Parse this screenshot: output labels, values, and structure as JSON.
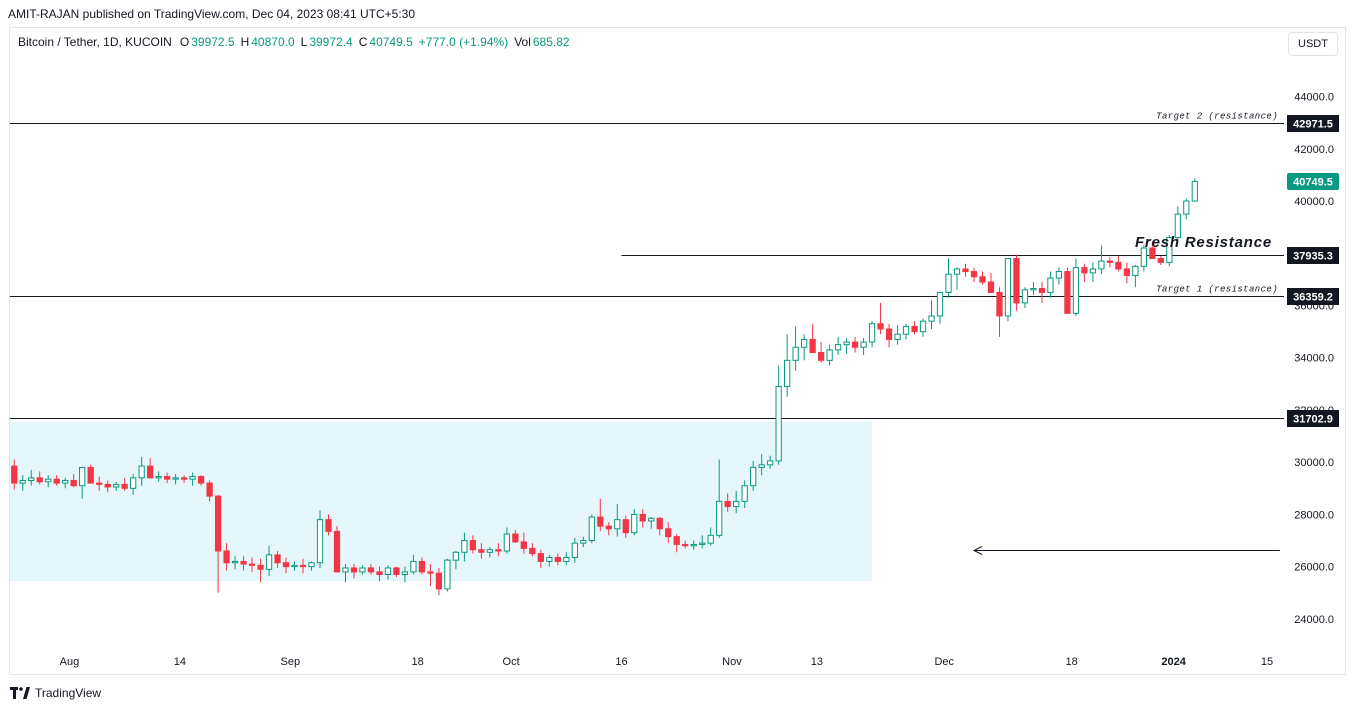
{
  "credit": "AMIT-RAJAN published on TradingView.com, Dec 04, 2023 08:41 UTC+5:30",
  "legend": {
    "symbol": "Bitcoin / Tether, 1D, KUCOIN",
    "o_label": "O",
    "o": "39972.5",
    "h_label": "H",
    "h": "40870.0",
    "l_label": "L",
    "l": "39972.4",
    "c_label": "C",
    "c": "40749.5",
    "change": "+777.0 (+1.94%)",
    "vol_label": "Vol",
    "vol": "685.82"
  },
  "unit_button": "USDT",
  "footer_brand": "TradingView",
  "annotations": {
    "fresh_resistance": "Fresh Resistance"
  },
  "colors": {
    "up": "#089981",
    "down": "#f23645",
    "zone": "#e6f7fb",
    "last_price_bg": "#089981",
    "level_label_bg": "#131722"
  },
  "chart_data": {
    "type": "candlestick",
    "y_range": [
      23000,
      45400
    ],
    "x_range": [
      0,
      150
    ],
    "y_ticks": [
      "44000.0",
      "42000.0",
      "40000.0",
      "38000.0",
      "36000.0",
      "34000.0",
      "32000.0",
      "30000.0",
      "28000.0",
      "26000.0",
      "24000.0"
    ],
    "x_ticks": [
      {
        "label": "Aug",
        "day": 7
      },
      {
        "label": "14",
        "day": 20
      },
      {
        "label": "Sep",
        "day": 33
      },
      {
        "label": "18",
        "day": 48
      },
      {
        "label": "Oct",
        "day": 59
      },
      {
        "label": "16",
        "day": 72
      },
      {
        "label": "Nov",
        "day": 85
      },
      {
        "label": "13",
        "day": 95
      },
      {
        "label": "Dec",
        "day": 110
      },
      {
        "label": "18",
        "day": 125
      },
      {
        "label": "2024",
        "day": 137
      },
      {
        "label": "15",
        "day": 148
      }
    ],
    "levels": [
      {
        "value": 42971.5,
        "label": "42971.5",
        "note": "Target 2 (resistance)",
        "from_day": 0
      },
      {
        "value": 37935.3,
        "label": "37935.3",
        "note": "",
        "from_day": 72
      },
      {
        "value": 36359.2,
        "label": "36359.2",
        "note": "Target 1 (resistance)",
        "from_day": 0
      },
      {
        "value": 31702.9,
        "label": "31702.9",
        "note": "",
        "from_day": 0
      }
    ],
    "last_price": {
      "value": 40749.5,
      "label": "40749.5"
    },
    "zone": {
      "from_day": 0,
      "to_day": 101.5,
      "low": 25450,
      "high": 31550
    },
    "arrow": {
      "from_day": 149.5,
      "to_day": 113.5,
      "value": 26650
    },
    "candles": [
      [
        29850,
        30100,
        28950,
        29200
      ],
      [
        29200,
        29500,
        28900,
        29300
      ],
      [
        29300,
        29700,
        29100,
        29400
      ],
      [
        29400,
        29650,
        29150,
        29250
      ],
      [
        29250,
        29500,
        29050,
        29350
      ],
      [
        29350,
        29500,
        29100,
        29200
      ],
      [
        29200,
        29400,
        29000,
        29300
      ],
      [
        29300,
        29550,
        29050,
        29100
      ],
      [
        29100,
        29600,
        28600,
        29800
      ],
      [
        29800,
        29900,
        29200,
        29200
      ],
      [
        29200,
        29450,
        28900,
        29150
      ],
      [
        29150,
        29300,
        28850,
        29050
      ],
      [
        29050,
        29250,
        28900,
        29150
      ],
      [
        29150,
        29400,
        28900,
        29000
      ],
      [
        29000,
        29550,
        28750,
        29400
      ],
      [
        29400,
        30200,
        29100,
        29850
      ],
      [
        29850,
        30150,
        29500,
        29400
      ],
      [
        29400,
        29650,
        29250,
        29450
      ],
      [
        29450,
        29600,
        29200,
        29350
      ],
      [
        29350,
        29550,
        29150,
        29400
      ],
      [
        29400,
        29500,
        29200,
        29350
      ],
      [
        29350,
        29600,
        29100,
        29450
      ],
      [
        29450,
        29500,
        29100,
        29200
      ],
      [
        29200,
        29300,
        28500,
        28700
      ],
      [
        28700,
        28750,
        25000,
        26600
      ],
      [
        26600,
        26900,
        25850,
        26150
      ],
      [
        26150,
        26400,
        25900,
        26200
      ],
      [
        26200,
        26400,
        25850,
        26100
      ],
      [
        26100,
        26350,
        25800,
        26050
      ],
      [
        26050,
        26300,
        25400,
        25900
      ],
      [
        25900,
        26800,
        25650,
        26450
      ],
      [
        26450,
        26600,
        25950,
        26150
      ],
      [
        26150,
        26350,
        25750,
        26000
      ],
      [
        26000,
        26200,
        25850,
        26050
      ],
      [
        26050,
        26300,
        25750,
        26000
      ],
      [
        26000,
        26200,
        25850,
        26150
      ],
      [
        26150,
        28150,
        25950,
        27800
      ],
      [
        27800,
        28000,
        27200,
        27350
      ],
      [
        27350,
        27550,
        25900,
        25800
      ],
      [
        25800,
        26100,
        25400,
        25950
      ],
      [
        25950,
        26100,
        25550,
        25800
      ],
      [
        25800,
        26050,
        25700,
        25950
      ],
      [
        25950,
        26100,
        25700,
        25800
      ],
      [
        25800,
        26000,
        25450,
        25700
      ],
      [
        25700,
        26050,
        25500,
        25950
      ],
      [
        25950,
        26000,
        25600,
        25700
      ],
      [
        25700,
        26000,
        25400,
        25800
      ],
      [
        25800,
        26450,
        25700,
        26200
      ],
      [
        26200,
        26350,
        25700,
        25800
      ],
      [
        25800,
        26100,
        25250,
        25750
      ],
      [
        25750,
        25950,
        24900,
        25150
      ],
      [
        25150,
        26300,
        25050,
        26250
      ],
      [
        26250,
        26600,
        25900,
        26550
      ],
      [
        26550,
        27300,
        26200,
        27000
      ],
      [
        27000,
        27200,
        26500,
        26650
      ],
      [
        26650,
        26900,
        26300,
        26550
      ],
      [
        26550,
        26750,
        26350,
        26650
      ],
      [
        26650,
        26900,
        26400,
        26600
      ],
      [
        26600,
        27500,
        26500,
        27250
      ],
      [
        27250,
        27400,
        26900,
        26950
      ],
      [
        26950,
        27300,
        26500,
        26700
      ],
      [
        26700,
        26900,
        26400,
        26500
      ],
      [
        26500,
        26650,
        25950,
        26200
      ],
      [
        26200,
        26450,
        26000,
        26350
      ],
      [
        26350,
        26500,
        26050,
        26200
      ],
      [
        26200,
        26550,
        26050,
        26350
      ],
      [
        26350,
        27100,
        26150,
        26900
      ],
      [
        26900,
        27150,
        26750,
        27000
      ],
      [
        27000,
        28000,
        26900,
        27900
      ],
      [
        27900,
        28600,
        27350,
        27550
      ],
      [
        27550,
        27700,
        27200,
        27450
      ],
      [
        27450,
        28400,
        27150,
        27800
      ],
      [
        27800,
        27950,
        27100,
        27300
      ],
      [
        27300,
        28200,
        27200,
        28000
      ],
      [
        28000,
        28200,
        27500,
        27750
      ],
      [
        27750,
        27900,
        27450,
        27850
      ],
      [
        27850,
        27900,
        27200,
        27450
      ],
      [
        27450,
        27700,
        26900,
        27150
      ],
      [
        27150,
        27250,
        26550,
        26850
      ],
      [
        26850,
        27000,
        26700,
        26800
      ],
      [
        26800,
        27000,
        26650,
        26850
      ],
      [
        26850,
        27200,
        26700,
        26900
      ],
      [
        26900,
        27500,
        26800,
        27200
      ],
      [
        27200,
        30100,
        27100,
        28500
      ],
      [
        28500,
        28800,
        28100,
        28300
      ],
      [
        28300,
        28900,
        28050,
        28500
      ],
      [
        28500,
        29300,
        28250,
        29100
      ],
      [
        29100,
        30050,
        28900,
        29800
      ],
      [
        29800,
        30300,
        29500,
        29900
      ],
      [
        29900,
        30250,
        29750,
        30050
      ],
      [
        30050,
        33700,
        29900,
        32900
      ],
      [
        32900,
        34900,
        32500,
        33900
      ],
      [
        33900,
        35200,
        33500,
        34400
      ],
      [
        34400,
        34900,
        33900,
        34700
      ],
      [
        34700,
        35300,
        34200,
        34200
      ],
      [
        34200,
        34600,
        33800,
        33900
      ],
      [
        33900,
        34500,
        33700,
        34300
      ],
      [
        34300,
        34800,
        34100,
        34500
      ],
      [
        34500,
        34750,
        34150,
        34600
      ],
      [
        34600,
        34800,
        34200,
        34400
      ],
      [
        34400,
        34750,
        34100,
        34600
      ],
      [
        34600,
        35400,
        34400,
        35300
      ],
      [
        35300,
        36100,
        34900,
        35100
      ],
      [
        35100,
        35300,
        34400,
        34700
      ],
      [
        34700,
        35250,
        34500,
        34900
      ],
      [
        34900,
        35300,
        34700,
        35200
      ],
      [
        35200,
        35400,
        34900,
        35000
      ],
      [
        35000,
        35500,
        34800,
        35400
      ],
      [
        35400,
        36200,
        35100,
        35600
      ],
      [
        35600,
        36300,
        35300,
        36500
      ],
      [
        36500,
        37800,
        36300,
        37200
      ],
      [
        37200,
        37450,
        36600,
        37400
      ],
      [
        37400,
        37600,
        37100,
        37300
      ],
      [
        37300,
        37450,
        36900,
        37100
      ],
      [
        37100,
        37300,
        36800,
        36900
      ],
      [
        36900,
        37250,
        36600,
        36500
      ],
      [
        36500,
        36700,
        34800,
        35600
      ],
      [
        35600,
        37800,
        35400,
        37800
      ],
      [
        37800,
        37950,
        35800,
        36100
      ],
      [
        36100,
        36700,
        35900,
        36600
      ],
      [
        36600,
        36900,
        36400,
        36650
      ],
      [
        36650,
        36900,
        36100,
        36500
      ],
      [
        36500,
        37300,
        36300,
        37050
      ],
      [
        37050,
        37450,
        36800,
        37300
      ],
      [
        37300,
        37450,
        35800,
        35700
      ],
      [
        35700,
        37800,
        35600,
        37450
      ],
      [
        37450,
        37600,
        36900,
        37250
      ],
      [
        37250,
        37650,
        36900,
        37400
      ],
      [
        37400,
        38300,
        37200,
        37700
      ],
      [
        37700,
        37850,
        37450,
        37650
      ],
      [
        37650,
        37900,
        37300,
        37400
      ],
      [
        37400,
        37650,
        36850,
        37150
      ],
      [
        37150,
        37550,
        36700,
        37500
      ],
      [
        37500,
        38300,
        37300,
        38200
      ],
      [
        38200,
        38450,
        37800,
        37800
      ],
      [
        37800,
        37900,
        37550,
        37650
      ],
      [
        37650,
        38700,
        37500,
        38600
      ],
      [
        38600,
        39800,
        38500,
        39500
      ],
      [
        39500,
        40100,
        39300,
        40000
      ],
      [
        40000,
        40870,
        39972,
        40749
      ]
    ]
  }
}
